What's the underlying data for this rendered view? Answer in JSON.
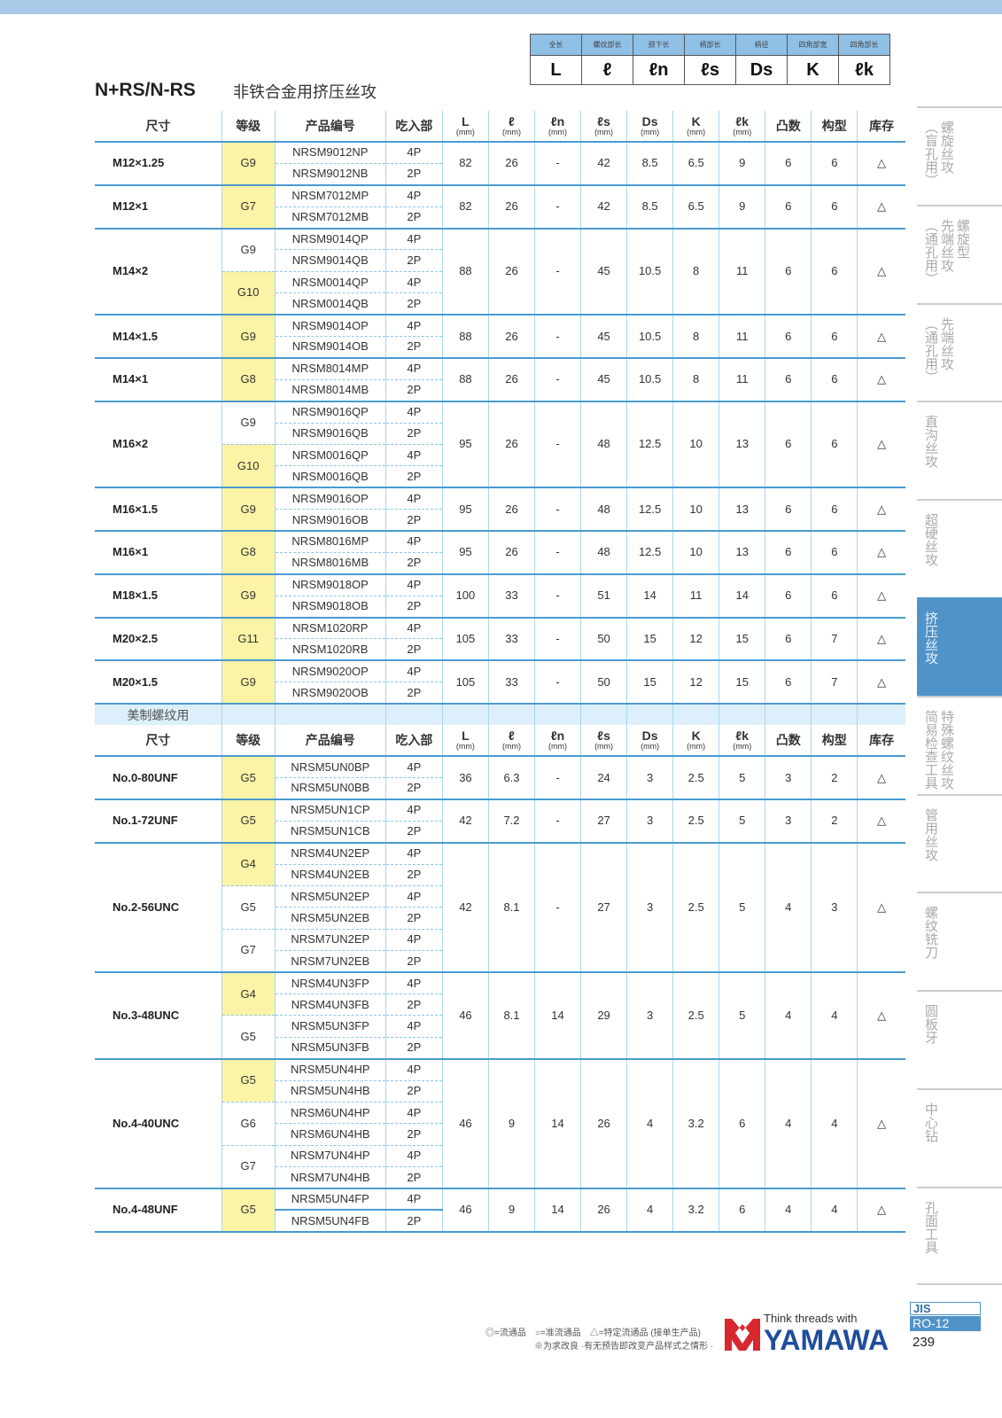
{
  "legend": {
    "labels": [
      "全长",
      "螺纹部长",
      "颈下长",
      "柄部长",
      "柄径",
      "四角部宽",
      "四角部长"
    ],
    "symbols": [
      "L",
      "ℓ",
      "ℓn",
      "ℓs",
      "Ds",
      "K",
      "ℓk"
    ]
  },
  "header": {
    "title": "N+RS/N-RS",
    "subtitle": "非铁合金用挤压丝攻"
  },
  "columns": [
    {
      "main": "尺寸"
    },
    {
      "main": "等级"
    },
    {
      "main": "产品编号"
    },
    {
      "main": "吃入部"
    },
    {
      "main": "L",
      "unit": "(mm)"
    },
    {
      "main": "ℓ",
      "unit": "(mm)"
    },
    {
      "main": "ℓn",
      "unit": "(mm)"
    },
    {
      "main": "ℓs",
      "unit": "(mm)"
    },
    {
      "main": "Ds",
      "unit": "(mm)"
    },
    {
      "main": "K",
      "unit": "(mm)"
    },
    {
      "main": "ℓk",
      "unit": "(mm)"
    },
    {
      "main": "凸数"
    },
    {
      "main": "构型"
    },
    {
      "main": "库存"
    }
  ],
  "sections": [
    {
      "label": "",
      "groups": [
        {
          "size": "M12×1.25",
          "grades": [
            {
              "grade": "G9",
              "highlight": true,
              "items": [
                {
                  "code": "NRSM9012NP",
                  "lead": "4P"
                },
                {
                  "code": "NRSM9012NB",
                  "lead": "2P"
                }
              ]
            }
          ],
          "values": [
            "82",
            "26",
            "-",
            "42",
            "8.5",
            "6.5",
            "9",
            "6",
            "6",
            "△"
          ]
        },
        {
          "size": "M12×1",
          "grades": [
            {
              "grade": "G7",
              "highlight": true,
              "items": [
                {
                  "code": "NRSM7012MP",
                  "lead": "4P"
                },
                {
                  "code": "NRSM7012MB",
                  "lead": "2P"
                }
              ]
            }
          ],
          "values": [
            "82",
            "26",
            "-",
            "42",
            "8.5",
            "6.5",
            "9",
            "6",
            "6",
            "△"
          ]
        },
        {
          "size": "M14×2",
          "grades": [
            {
              "grade": "G9",
              "highlight": false,
              "items": [
                {
                  "code": "NRSM9014QP",
                  "lead": "4P"
                },
                {
                  "code": "NRSM9014QB",
                  "lead": "2P"
                }
              ]
            },
            {
              "grade": "G10",
              "highlight": true,
              "items": [
                {
                  "code": "NRSM0014QP",
                  "lead": "4P"
                },
                {
                  "code": "NRSM0014QB",
                  "lead": "2P"
                }
              ]
            }
          ],
          "values": [
            "88",
            "26",
            "-",
            "45",
            "10.5",
            "8",
            "11",
            "6",
            "6",
            "△"
          ]
        },
        {
          "size": "M14×1.5",
          "grades": [
            {
              "grade": "G9",
              "highlight": true,
              "items": [
                {
                  "code": "NRSM9014OP",
                  "lead": "4P"
                },
                {
                  "code": "NRSM9014OB",
                  "lead": "2P"
                }
              ]
            }
          ],
          "values": [
            "88",
            "26",
            "-",
            "45",
            "10.5",
            "8",
            "11",
            "6",
            "6",
            "△"
          ]
        },
        {
          "size": "M14×1",
          "grades": [
            {
              "grade": "G8",
              "highlight": true,
              "items": [
                {
                  "code": "NRSM8014MP",
                  "lead": "4P"
                },
                {
                  "code": "NRSM8014MB",
                  "lead": "2P"
                }
              ]
            }
          ],
          "values": [
            "88",
            "26",
            "-",
            "45",
            "10.5",
            "8",
            "11",
            "6",
            "6",
            "△"
          ]
        },
        {
          "size": "M16×2",
          "grades": [
            {
              "grade": "G9",
              "highlight": false,
              "items": [
                {
                  "code": "NRSM9016QP",
                  "lead": "4P"
                },
                {
                  "code": "NRSM9016QB",
                  "lead": "2P"
                }
              ]
            },
            {
              "grade": "G10",
              "highlight": true,
              "items": [
                {
                  "code": "NRSM0016QP",
                  "lead": "4P"
                },
                {
                  "code": "NRSM0016QB",
                  "lead": "2P"
                }
              ]
            }
          ],
          "values": [
            "95",
            "26",
            "-",
            "48",
            "12.5",
            "10",
            "13",
            "6",
            "6",
            "△"
          ]
        },
        {
          "size": "M16×1.5",
          "grades": [
            {
              "grade": "G9",
              "highlight": true,
              "items": [
                {
                  "code": "NRSM9016OP",
                  "lead": "4P"
                },
                {
                  "code": "NRSM9016OB",
                  "lead": "2P"
                }
              ]
            }
          ],
          "values": [
            "95",
            "26",
            "-",
            "48",
            "12.5",
            "10",
            "13",
            "6",
            "6",
            "△"
          ]
        },
        {
          "size": "M16×1",
          "grades": [
            {
              "grade": "G8",
              "highlight": true,
              "items": [
                {
                  "code": "NRSM8016MP",
                  "lead": "4P"
                },
                {
                  "code": "NRSM8016MB",
                  "lead": "2P"
                }
              ]
            }
          ],
          "values": [
            "95",
            "26",
            "-",
            "48",
            "12.5",
            "10",
            "13",
            "6",
            "6",
            "△"
          ]
        },
        {
          "size": "M18×1.5",
          "grades": [
            {
              "grade": "G9",
              "highlight": true,
              "items": [
                {
                  "code": "NRSM9018OP",
                  "lead": "4P"
                },
                {
                  "code": "NRSM9018OB",
                  "lead": "2P"
                }
              ]
            }
          ],
          "values": [
            "100",
            "33",
            "-",
            "51",
            "14",
            "11",
            "14",
            "6",
            "6",
            "△"
          ]
        },
        {
          "size": "M20×2.5",
          "grades": [
            {
              "grade": "G11",
              "highlight": true,
              "items": [
                {
                  "code": "NRSM1020RP",
                  "lead": "4P"
                },
                {
                  "code": "NRSM1020RB",
                  "lead": "2P"
                }
              ]
            }
          ],
          "values": [
            "105",
            "33",
            "-",
            "50",
            "15",
            "12",
            "15",
            "6",
            "7",
            "△"
          ]
        },
        {
          "size": "M20×1.5",
          "grades": [
            {
              "grade": "G9",
              "highlight": true,
              "items": [
                {
                  "code": "NRSM9020OP",
                  "lead": "4P"
                },
                {
                  "code": "NRSM9020OB",
                  "lead": "2P"
                }
              ]
            }
          ],
          "values": [
            "105",
            "33",
            "-",
            "50",
            "15",
            "12",
            "15",
            "6",
            "7",
            "△"
          ]
        }
      ]
    },
    {
      "label": "美制螺纹用",
      "groups": [
        {
          "size": "No.0-80UNF",
          "grades": [
            {
              "grade": "G5",
              "highlight": true,
              "items": [
                {
                  "code": "NRSM5UN0BP",
                  "lead": "4P"
                },
                {
                  "code": "NRSM5UN0BB",
                  "lead": "2P"
                }
              ]
            }
          ],
          "values": [
            "36",
            "6.3",
            "-",
            "24",
            "3",
            "2.5",
            "5",
            "3",
            "2",
            "△"
          ]
        },
        {
          "size": "No.1-72UNF",
          "grades": [
            {
              "grade": "G5",
              "highlight": true,
              "items": [
                {
                  "code": "NRSM5UN1CP",
                  "lead": "4P"
                },
                {
                  "code": "NRSM5UN1CB",
                  "lead": "2P"
                }
              ]
            }
          ],
          "values": [
            "42",
            "7.2",
            "-",
            "27",
            "3",
            "2.5",
            "5",
            "3",
            "2",
            "△"
          ]
        },
        {
          "size": "No.2-56UNC",
          "grades": [
            {
              "grade": "G4",
              "highlight": true,
              "items": [
                {
                  "code": "NRSM4UN2EP",
                  "lead": "4P"
                },
                {
                  "code": "NRSM4UN2EB",
                  "lead": "2P"
                }
              ]
            },
            {
              "grade": "G5",
              "highlight": false,
              "items": [
                {
                  "code": "NRSM5UN2EP",
                  "lead": "4P"
                },
                {
                  "code": "NRSM5UN2EB",
                  "lead": "2P"
                }
              ]
            },
            {
              "grade": "G7",
              "highlight": false,
              "items": [
                {
                  "code": "NRSM7UN2EP",
                  "lead": "4P"
                },
                {
                  "code": "NRSM7UN2EB",
                  "lead": "2P"
                }
              ]
            }
          ],
          "values": [
            "42",
            "8.1",
            "-",
            "27",
            "3",
            "2.5",
            "5",
            "4",
            "3",
            "△"
          ]
        },
        {
          "size": "No.3-48UNC",
          "grades": [
            {
              "grade": "G4",
              "highlight": true,
              "items": [
                {
                  "code": "NRSM4UN3FP",
                  "lead": "4P"
                },
                {
                  "code": "NRSM4UN3FB",
                  "lead": "2P"
                }
              ]
            },
            {
              "grade": "G5",
              "highlight": false,
              "items": [
                {
                  "code": "NRSM5UN3FP",
                  "lead": "4P"
                },
                {
                  "code": "NRSM5UN3FB",
                  "lead": "2P"
                }
              ]
            }
          ],
          "values": [
            "46",
            "8.1",
            "14",
            "29",
            "3",
            "2.5",
            "5",
            "4",
            "4",
            "△"
          ]
        },
        {
          "size": "No.4-40UNC",
          "grades": [
            {
              "grade": "G5",
              "highlight": true,
              "items": [
                {
                  "code": "NRSM5UN4HP",
                  "lead": "4P"
                },
                {
                  "code": "NRSM5UN4HB",
                  "lead": "2P"
                }
              ]
            },
            {
              "grade": "G6",
              "highlight": false,
              "items": [
                {
                  "code": "NRSM6UN4HP",
                  "lead": "4P"
                },
                {
                  "code": "NRSM6UN4HB",
                  "lead": "2P"
                }
              ]
            },
            {
              "grade": "G7",
              "highlight": false,
              "items": [
                {
                  "code": "NRSM7UN4HP",
                  "lead": "4P"
                },
                {
                  "code": "NRSM7UN4HB",
                  "lead": "2P"
                }
              ]
            }
          ],
          "values": [
            "46",
            "9",
            "14",
            "26",
            "4",
            "3.2",
            "6",
            "4",
            "4",
            "△"
          ]
        },
        {
          "size": "No.4-48UNF",
          "grades": [
            {
              "grade": "G5",
              "highlight": true,
              "items": [
                {
                  "code": "NRSM5UN4FP",
                  "lead": "4P"
                },
                {
                  "code": "NRSM5UN4FB",
                  "lead": "2P"
                }
              ]
            }
          ],
          "values": [
            "46",
            "9",
            "14",
            "26",
            "4",
            "3.2",
            "6",
            "4",
            "4",
            "△"
          ]
        }
      ]
    }
  ],
  "sidebar": {
    "tabs": [
      {
        "label": "螺旋丝攻\n（盲孔用）",
        "active": false
      },
      {
        "label": "螺旋型\n先端丝攻\n（通孔用）",
        "active": false
      },
      {
        "label": "先端丝攻\n（通孔用）",
        "active": false
      },
      {
        "label": "直沟丝攻",
        "active": false
      },
      {
        "label": "超硬丝攻",
        "active": false
      },
      {
        "label": "挤压丝攻",
        "active": true
      },
      {
        "label": "特殊螺纹丝攻\n简易检查工具",
        "active": false
      },
      {
        "label": "管用丝攻",
        "active": false
      },
      {
        "label": "螺纹铣刀",
        "active": false
      },
      {
        "label": "圆板牙",
        "active": false
      },
      {
        "label": "中心钻",
        "active": false
      },
      {
        "label": "孔面工具",
        "active": false
      }
    ]
  },
  "footer": {
    "legend_note": "◎=流通品　○=准流通品　△=特定流通品 (接单生产品)",
    "disclaimer": "※为求改良 ·有无预告即改变产品样式之情形 ·",
    "logo_tagline": "Think threads with",
    "logo_brand": "YAMAWA",
    "standard": "JIS",
    "section_code": "RO-12",
    "page_number": "239"
  },
  "colors": {
    "accent": "#4a9ad0",
    "highlight": "#fbf3a6",
    "active_tab": "#4f93c8",
    "brand_red": "#d7282f",
    "brand_blue": "#1f4d9c"
  }
}
